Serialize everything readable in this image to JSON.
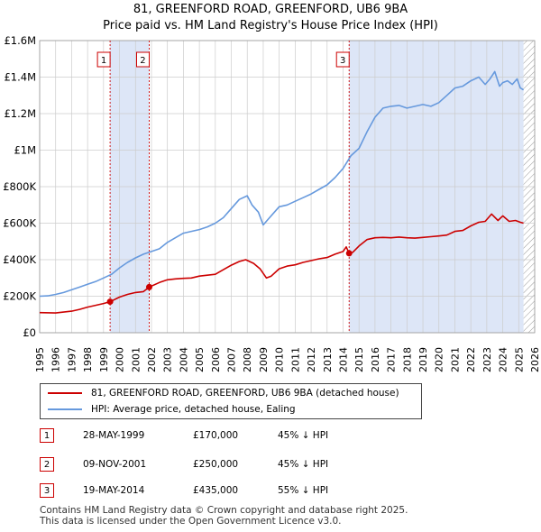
{
  "title_line1": "81, GREENFORD ROAD, GREENFORD, UB6 9BA",
  "title_line2": "Price paid vs. HM Land Registry's House Price Index (HPI)",
  "colors": {
    "property": "#cc0000",
    "hpi": "#6699dd",
    "shade": "#dde6f7",
    "grid": "#cccccc",
    "marker_border": "#cc0000",
    "hatch": "#999999"
  },
  "legend": {
    "property_label": "81, GREENFORD ROAD, GREENFORD, UB6 9BA (detached house)",
    "hpi_label": "HPI: Average price, detached house, Ealing"
  },
  "transactions": [
    {
      "num": "1",
      "date": "28-MAY-1999",
      "price": "£170,000",
      "hpi": "45% ↓ HPI",
      "year": 1999.41,
      "value": 170000
    },
    {
      "num": "2",
      "date": "09-NOV-2001",
      "price": "£250,000",
      "hpi": "45% ↓ HPI",
      "year": 2001.86,
      "value": 250000
    },
    {
      "num": "3",
      "date": "19-MAY-2014",
      "price": "£435,000",
      "hpi": "55% ↓ HPI",
      "year": 2014.38,
      "value": 435000
    }
  ],
  "footer": {
    "line1": "Contains HM Land Registry data © Crown copyright and database right 2025.",
    "line2": "This data is licensed under the Open Government Licence v3.0."
  },
  "chart_data": {
    "type": "line",
    "title": "81, GREENFORD ROAD, GREENFORD, UB6 9BA — Price paid vs. HM Land Registry's House Price Index (HPI)",
    "xlabel": "",
    "ylabel": "",
    "xlim": [
      1995,
      2026
    ],
    "ylim": [
      0,
      1600000
    ],
    "x_ticks": [
      1995,
      1996,
      1997,
      1998,
      1999,
      2000,
      2001,
      2002,
      2003,
      2004,
      2005,
      2006,
      2007,
      2008,
      2009,
      2010,
      2011,
      2012,
      2013,
      2014,
      2015,
      2016,
      2017,
      2018,
      2019,
      2020,
      2021,
      2022,
      2023,
      2024,
      2025,
      2026
    ],
    "y_ticks": [
      {
        "value": 0,
        "label": "£0"
      },
      {
        "value": 200000,
        "label": "£200K"
      },
      {
        "value": 400000,
        "label": "£400K"
      },
      {
        "value": 600000,
        "label": "£600K"
      },
      {
        "value": 800000,
        "label": "£800K"
      },
      {
        "value": 1000000,
        "label": "£1M"
      },
      {
        "value": 1200000,
        "label": "£1.2M"
      },
      {
        "value": 1400000,
        "label": "£1.4M"
      },
      {
        "value": 1600000,
        "label": "£1.6M"
      }
    ],
    "grid": true,
    "shaded_regions": [
      [
        1999.41,
        2001.86
      ],
      [
        2014.38,
        2025.3
      ]
    ],
    "hatched_region": [
      2025.3,
      2026
    ],
    "series": [
      {
        "name": "81, GREENFORD ROAD, GREENFORD, UB6 9BA (detached house)",
        "x": [
          1995,
          1996,
          1997,
          1997.5,
          1998,
          1998.5,
          1999,
          1999.41,
          2000,
          2000.5,
          2001,
          2001.5,
          2001.86,
          2002.5,
          2003,
          2003.5,
          2004,
          2004.5,
          2005,
          2006,
          2006.5,
          2007,
          2007.5,
          2007.9,
          2008.4,
          2008.8,
          2009.2,
          2009.5,
          2010,
          2010.5,
          2011,
          2011.5,
          2012,
          2012.5,
          2013,
          2013.5,
          2014,
          2014.2,
          2014.38,
          2014.6,
          2015,
          2015.5,
          2016,
          2016.5,
          2017,
          2017.5,
          2018,
          2018.5,
          2019,
          2019.5,
          2020,
          2020.5,
          2021,
          2021.5,
          2022,
          2022.5,
          2022.9,
          2023.3,
          2023.7,
          2024,
          2024.4,
          2024.8,
          2025.1,
          2025.3
        ],
        "values": [
          110000,
          108000,
          118000,
          128000,
          140000,
          150000,
          160000,
          170000,
          195000,
          210000,
          220000,
          225000,
          250000,
          275000,
          290000,
          295000,
          298000,
          300000,
          310000,
          320000,
          345000,
          370000,
          390000,
          400000,
          380000,
          350000,
          300000,
          310000,
          350000,
          365000,
          372000,
          385000,
          395000,
          405000,
          412000,
          430000,
          445000,
          470000,
          435000,
          440000,
          475000,
          510000,
          520000,
          522000,
          520000,
          524000,
          520000,
          518000,
          522000,
          526000,
          530000,
          535000,
          555000,
          560000,
          585000,
          605000,
          610000,
          650000,
          615000,
          640000,
          610000,
          615000,
          605000,
          600000
        ]
      },
      {
        "name": "HPI: Average price, detached house, Ealing",
        "x": [
          1995,
          1995.5,
          1996,
          1996.5,
          1997,
          1997.5,
          1998,
          1998.5,
          1999,
          1999.5,
          2000,
          2000.5,
          2001,
          2001.5,
          2002,
          2002.5,
          2003,
          2003.5,
          2004,
          2004.5,
          2005,
          2005.5,
          2006,
          2006.5,
          2007,
          2007.5,
          2008,
          2008.3,
          2008.7,
          2009,
          2009.3,
          2009.7,
          2010,
          2010.5,
          2011,
          2011.5,
          2012,
          2012.5,
          2013,
          2013.5,
          2014,
          2014.5,
          2015,
          2015.5,
          2016,
          2016.5,
          2017,
          2017.5,
          2018,
          2018.5,
          2019,
          2019.5,
          2020,
          2020.5,
          2021,
          2021.5,
          2022,
          2022.5,
          2022.9,
          2023.2,
          2023.5,
          2023.8,
          2024,
          2024.3,
          2024.6,
          2024.9,
          2025.1,
          2025.3
        ],
        "values": [
          200000,
          202000,
          210000,
          220000,
          235000,
          250000,
          265000,
          280000,
          300000,
          320000,
          355000,
          385000,
          410000,
          430000,
          445000,
          460000,
          495000,
          520000,
          545000,
          555000,
          565000,
          580000,
          600000,
          630000,
          680000,
          730000,
          750000,
          700000,
          660000,
          590000,
          620000,
          660000,
          690000,
          700000,
          720000,
          740000,
          760000,
          785000,
          810000,
          850000,
          900000,
          970000,
          1010000,
          1100000,
          1180000,
          1230000,
          1240000,
          1245000,
          1230000,
          1240000,
          1250000,
          1240000,
          1260000,
          1300000,
          1340000,
          1350000,
          1380000,
          1400000,
          1360000,
          1390000,
          1430000,
          1350000,
          1370000,
          1380000,
          1360000,
          1390000,
          1340000,
          1330000
        ]
      }
    ]
  }
}
